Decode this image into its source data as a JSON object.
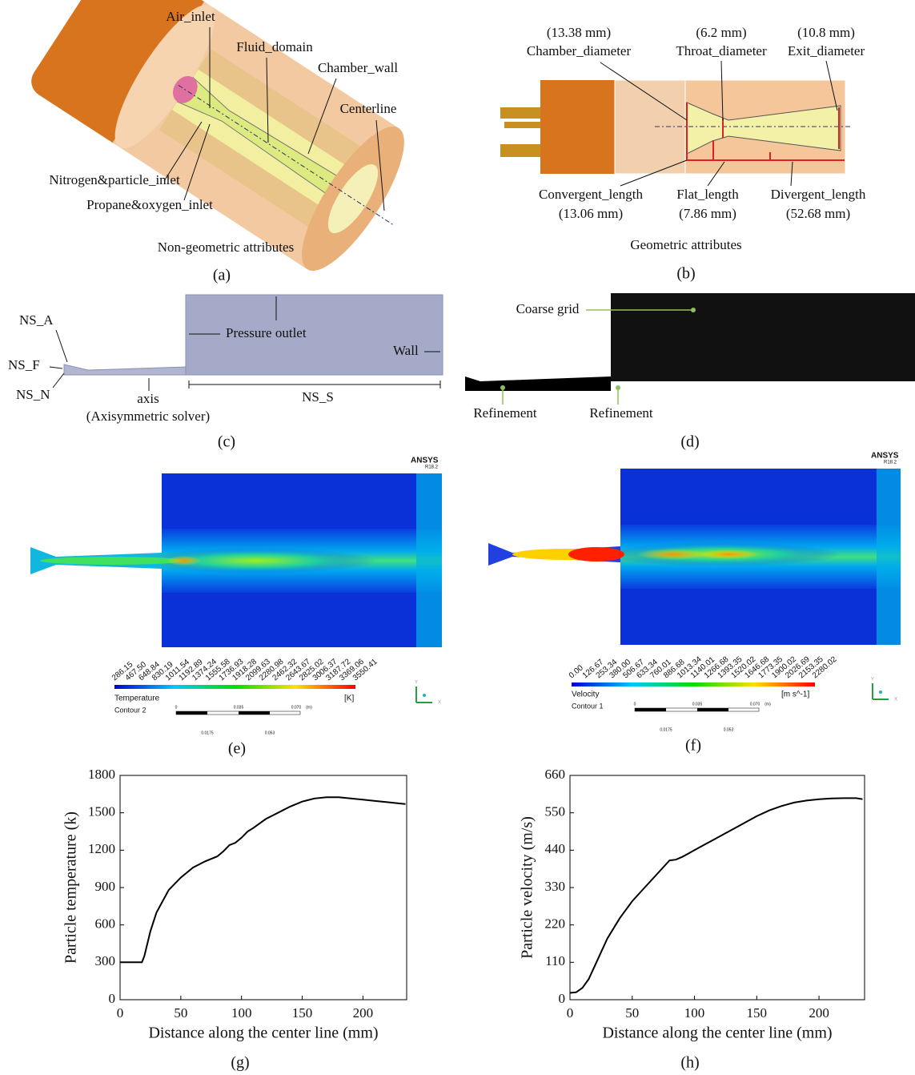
{
  "panels": {
    "a": {
      "labels": [
        "Air_inlet",
        "Fluid_domain",
        "Chamber_wall",
        "Centerline",
        "Nitrogen&particle_inlet",
        "Propane&oxygen_inlet"
      ],
      "caption": "Non-geometric attributes",
      "letter": "(a)"
    },
    "b": {
      "dims": [
        {
          "value": "(13.38 mm)",
          "name": "Chamber_diameter"
        },
        {
          "value": "(6.2 mm)",
          "name": "Throat_diameter"
        },
        {
          "value": "(10.8 mm)",
          "name": "Exit_diameter"
        },
        {
          "value": "(13.06 mm)",
          "name": "Convergent_length"
        },
        {
          "value": "(7.86 mm)",
          "name": "Flat_length"
        },
        {
          "value": "(52.68 mm)",
          "name": "Divergent_length"
        }
      ],
      "caption": "Geometric attributes",
      "letter": "(b)"
    },
    "c": {
      "labels": [
        "NS_A",
        "NS_F",
        "NS_N",
        "axis",
        "(Axisymmetric solver)",
        "Pressure outlet",
        "Wall",
        "NS_S"
      ],
      "letter": "(c)"
    },
    "d": {
      "labels": [
        "Coarse grid",
        "Refinement",
        "Refinement"
      ],
      "letter": "(d)"
    },
    "e": {
      "brand": "ANSYS",
      "version": "R18.2",
      "ticks": [
        "286.15",
        "467.50",
        "648.84",
        "830.19",
        "1011.54",
        "1192.89",
        "1374.24",
        "1555.58",
        "1736.93",
        "1918.28",
        "2099.63",
        "2280.98",
        "2462.32",
        "2643.67",
        "2825.02",
        "3006.37",
        "3187.72",
        "3369.06",
        "3550.41"
      ],
      "variable": "Temperature",
      "unit": "[K]",
      "contour": "Contour 2",
      "scale": [
        "0",
        "0.035",
        "0.070",
        "(m)",
        "0.0175",
        "0.053"
      ],
      "axes": [
        "Y",
        "X"
      ],
      "letter": "(e)"
    },
    "f": {
      "brand": "ANSYS",
      "version": "R18.2",
      "ticks": [
        "0.00",
        "126.67",
        "253.34",
        "380.00",
        "506.67",
        "633.34",
        "760.01",
        "886.68",
        "1013.34",
        "1140.01",
        "1266.68",
        "1393.35",
        "1520.02",
        "1646.68",
        "1773.35",
        "1900.02",
        "2026.69",
        "2153.35",
        "2280.02"
      ],
      "variable": "Velocity",
      "unit": "[m s^-1]",
      "contour": "Contour 1",
      "scale": [
        "0",
        "0.035",
        "0.070",
        "(m)",
        "0.0175",
        "0.053"
      ],
      "axes": [
        "Y",
        "X"
      ],
      "letter": "(f)"
    }
  },
  "chart_data": [
    {
      "type": "line",
      "xlabel": "Distance along the center line (mm)",
      "ylabel": "Particle temperature (k)",
      "caption": "(g)",
      "color": "#000000",
      "x": [
        0,
        18,
        20,
        25,
        30,
        40,
        50,
        60,
        70,
        80,
        85,
        90,
        95,
        100,
        105,
        110,
        120,
        130,
        140,
        150,
        160,
        170,
        180,
        190,
        200,
        210,
        220,
        230,
        235
      ],
      "values": [
        300,
        300,
        350,
        550,
        700,
        880,
        980,
        1060,
        1110,
        1150,
        1190,
        1240,
        1260,
        1300,
        1350,
        1380,
        1450,
        1500,
        1550,
        1590,
        1615,
        1625,
        1625,
        1615,
        1605,
        1595,
        1585,
        1575,
        1570
      ],
      "xlim": [
        0,
        236
      ],
      "xticks": [
        0,
        50,
        100,
        150,
        200
      ],
      "ylim": [
        0,
        1800
      ],
      "yticks": [
        0,
        300,
        600,
        900,
        1200,
        1500,
        1800
      ]
    },
    {
      "type": "line",
      "xlabel": "Distance along the center line (mm)",
      "ylabel": "Particle velocity (m/s)",
      "caption": "(h)",
      "color": "#000000",
      "x": [
        0,
        5,
        10,
        15,
        20,
        25,
        30,
        40,
        50,
        60,
        70,
        80,
        85,
        90,
        95,
        100,
        110,
        120,
        130,
        140,
        150,
        160,
        170,
        180,
        190,
        200,
        210,
        220,
        230,
        235
      ],
      "values": [
        20,
        22,
        35,
        60,
        100,
        140,
        180,
        240,
        290,
        330,
        370,
        410,
        412,
        420,
        430,
        440,
        460,
        480,
        500,
        520,
        540,
        557,
        570,
        580,
        586,
        590,
        592,
        593,
        593,
        590
      ],
      "xlim": [
        0,
        236.6
      ],
      "xticks": [
        0,
        50,
        100,
        150,
        200
      ],
      "ylim": [
        0,
        660
      ],
      "yticks": [
        0,
        110,
        220,
        330,
        440,
        550,
        660
      ]
    }
  ]
}
